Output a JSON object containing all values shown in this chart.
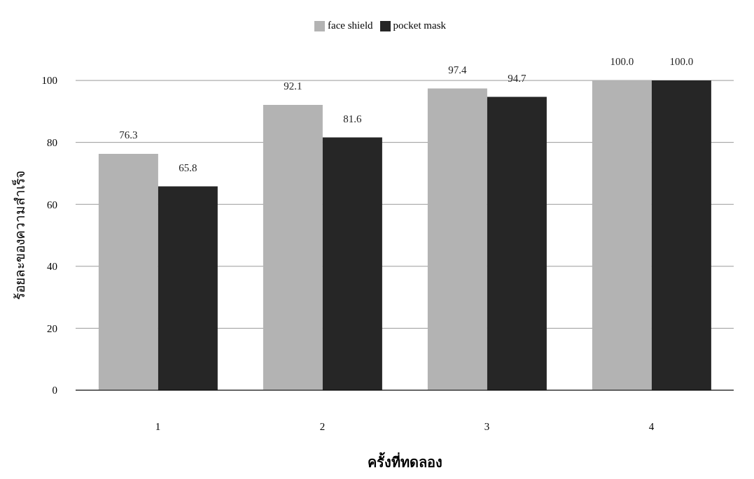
{
  "chart_data": {
    "type": "bar",
    "xlabel": "ครั้งที่ทดลอง",
    "ylabel": "ร้อยละของความสำเร็จ",
    "categories": [
      "1",
      "2",
      "3",
      "4"
    ],
    "series": [
      {
        "name": "face shield",
        "color": "#b3b3b3",
        "values": [
          76.3,
          92.1,
          97.4,
          100.0
        ],
        "value_labels": [
          "76.3",
          "92.1",
          "97.4",
          "100.0"
        ]
      },
      {
        "name": "pocket mask",
        "color": "#262626",
        "values": [
          65.8,
          81.6,
          94.7,
          100.0
        ],
        "value_labels": [
          "65.8",
          "81.6",
          "94.7",
          "100.0"
        ]
      }
    ],
    "ylim": [
      0,
      100
    ],
    "yticks": [
      0,
      20,
      40,
      60,
      80,
      100
    ],
    "grid": "y",
    "legend": "top"
  }
}
